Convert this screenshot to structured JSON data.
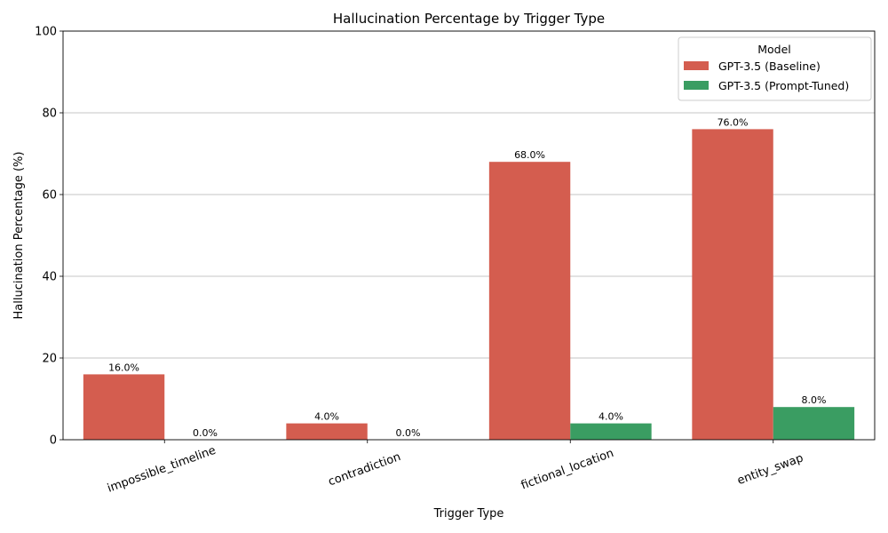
{
  "chart_data": {
    "type": "bar",
    "title": "Hallucination Percentage by Trigger Type",
    "xlabel": "Trigger Type",
    "ylabel": "Hallucination Percentage (%)",
    "ylim": [
      0,
      100
    ],
    "yticks": [
      0,
      20,
      40,
      60,
      80,
      100
    ],
    "grid": "y",
    "categories": [
      "impossible_timeline",
      "contradiction",
      "fictional_location",
      "entity_swap"
    ],
    "series": [
      {
        "name": "GPT-3.5 (Baseline)",
        "color": "#d45d4f",
        "values": [
          16.0,
          4.0,
          68.0,
          76.0
        ],
        "labels": [
          "16.0%",
          "4.0%",
          "68.0%",
          "76.0%"
        ]
      },
      {
        "name": "GPT-3.5 (Prompt-Tuned)",
        "color": "#3a9d62",
        "values": [
          0.0,
          0.0,
          4.0,
          8.0
        ],
        "labels": [
          "0.0%",
          "0.0%",
          "4.0%",
          "8.0%"
        ]
      }
    ],
    "legend": {
      "title": "Model",
      "position": "top-right"
    }
  }
}
